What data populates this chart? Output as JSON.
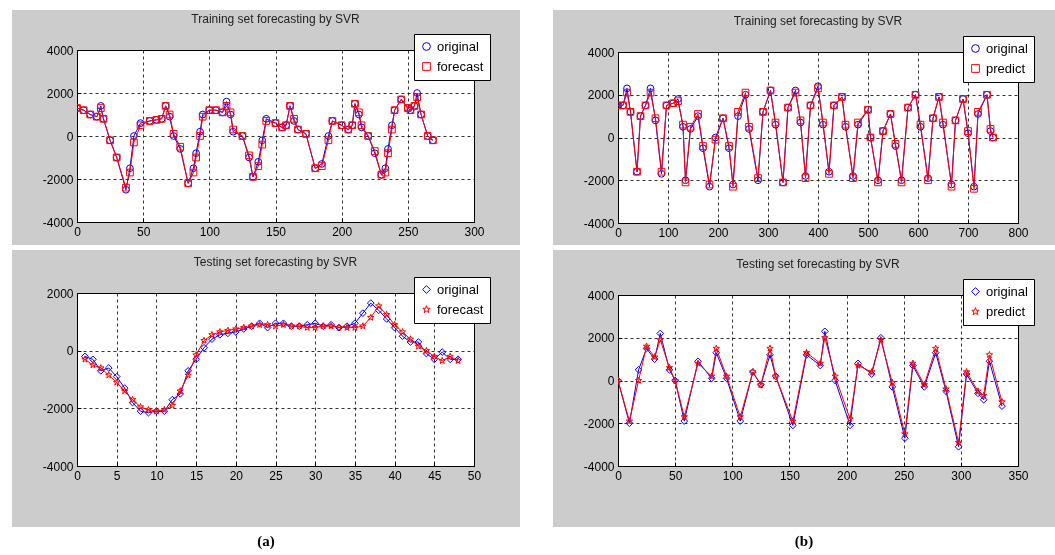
{
  "chart_data": [
    {
      "type": "line",
      "title": "Training set forecasting by SVR",
      "xlim": [
        0,
        300
      ],
      "xticks": [
        0,
        50,
        100,
        150,
        200,
        250,
        300
      ],
      "ylim": [
        -4000,
        4000
      ],
      "yticks": [
        -4000,
        -2000,
        0,
        2000,
        4000
      ],
      "grid": true,
      "legend": "top right",
      "line_style": "solid",
      "x": [
        0,
        5,
        10,
        15,
        18,
        20,
        25,
        30,
        37,
        40,
        43,
        48,
        55,
        60,
        64,
        67,
        70,
        73,
        78,
        84,
        88,
        90,
        93,
        95,
        100,
        105,
        110,
        113,
        116,
        118,
        125,
        130,
        133,
        137,
        140,
        143,
        150,
        155,
        158,
        161,
        164,
        167,
        173,
        180,
        185,
        190,
        193,
        200,
        205,
        208,
        210,
        213,
        215,
        220,
        225,
        230,
        233,
        235,
        238,
        240,
        245,
        250,
        252,
        255,
        257,
        260,
        265,
        269
      ],
      "series": [
        {
          "name": "original",
          "color": "#0000ff",
          "marker": "circle",
          "values": [
            1300,
            1200,
            1000,
            900,
            1400,
            800,
            -200,
            -1000,
            -2500,
            -1500,
            0,
            600,
            700,
            750,
            800,
            1400,
            900,
            0,
            -600,
            -2200,
            -1500,
            -800,
            200,
            1000,
            1200,
            1200,
            1100,
            1600,
            1000,
            200,
            0,
            -1000,
            -1900,
            -1200,
            -200,
            800,
            600,
            400,
            500,
            1400,
            700,
            300,
            100,
            -1500,
            -1300,
            0,
            700,
            500,
            300,
            500,
            1500,
            1000,
            400,
            0,
            -800,
            -1800,
            -1500,
            -600,
            500,
            1200,
            1700,
            1300,
            1200,
            1400,
            2000,
            1000,
            0,
            -200
          ]
        },
        {
          "name": "forecast",
          "color": "#ff0000",
          "marker": "square",
          "values": [
            1300,
            1200,
            1000,
            900,
            1300,
            800,
            -200,
            -1000,
            -2400,
            -1700,
            -300,
            500,
            700,
            750,
            800,
            1400,
            1000,
            100,
            -500,
            -2200,
            -1700,
            -1000,
            0,
            900,
            1200,
            1200,
            1100,
            1400,
            1100,
            300,
            0,
            -900,
            -1900,
            -1400,
            -400,
            700,
            600,
            400,
            500,
            1400,
            800,
            300,
            100,
            -1500,
            -1400,
            -200,
            700,
            500,
            300,
            500,
            1500,
            1100,
            500,
            0,
            -700,
            -1800,
            -1700,
            -800,
            300,
            1200,
            1700,
            1300,
            1200,
            1400,
            1800,
            1000,
            0,
            -200
          ]
        }
      ]
    },
    {
      "type": "line",
      "title": "Testing  set forecasting by SVR",
      "annotations": [
        "(a)"
      ],
      "xlim": [
        0,
        50
      ],
      "xticks": [
        0,
        5,
        10,
        15,
        20,
        25,
        30,
        35,
        40,
        45,
        50
      ],
      "ylim": [
        -4000,
        2000
      ],
      "yticks": [
        -4000,
        -2000,
        0,
        2000
      ],
      "grid": true,
      "legend": "top right",
      "line_style": "solid",
      "x": [
        1,
        2,
        3,
        4,
        5,
        6,
        7,
        8,
        9,
        10,
        11,
        12,
        13,
        14,
        15,
        16,
        17,
        18,
        19,
        20,
        21,
        22,
        23,
        24,
        25,
        26,
        27,
        28,
        29,
        30,
        31,
        32,
        33,
        34,
        35,
        36,
        37,
        38,
        39,
        40,
        41,
        42,
        43,
        44,
        45,
        46,
        47,
        48
      ],
      "series": [
        {
          "name": "original",
          "color": "#0000ff",
          "marker": "diamond",
          "values": [
            -200,
            -300,
            -700,
            -600,
            -900,
            -1300,
            -1800,
            -2100,
            -2150,
            -2100,
            -2100,
            -1700,
            -1500,
            -700,
            -300,
            100,
            400,
            550,
            600,
            650,
            750,
            850,
            950,
            800,
            950,
            950,
            850,
            850,
            900,
            950,
            850,
            900,
            800,
            850,
            950,
            1300,
            1650,
            1400,
            1100,
            800,
            500,
            300,
            300,
            -100,
            -300,
            -50,
            -300,
            -300
          ]
        },
        {
          "name": "forecast",
          "color": "#ff0000",
          "marker": "star",
          "values": [
            -300,
            -500,
            -600,
            -850,
            -1100,
            -1400,
            -1700,
            -1950,
            -2050,
            -2100,
            -2050,
            -1900,
            -1400,
            -850,
            -150,
            350,
            550,
            650,
            700,
            750,
            800,
            850,
            900,
            900,
            850,
            900,
            850,
            850,
            800,
            800,
            850,
            850,
            800,
            800,
            800,
            850,
            1150,
            1550,
            1250,
            900,
            650,
            400,
            150,
            0,
            -200,
            -350,
            -200,
            -350
          ]
        }
      ]
    },
    {
      "type": "line",
      "title": "Training set forecasting by SVR",
      "xlim": [
        0,
        800
      ],
      "xticks": [
        0,
        100,
        200,
        300,
        400,
        500,
        600,
        700,
        800
      ],
      "ylim": [
        -4000,
        4000
      ],
      "yticks": [
        -4000,
        -2000,
        0,
        2000,
        4000
      ],
      "grid": true,
      "legend": "top right",
      "line_style": "solid",
      "x": [
        0,
        10,
        18,
        25,
        38,
        45,
        55,
        65,
        75,
        87,
        97,
        110,
        120,
        130,
        135,
        145,
        160,
        170,
        183,
        195,
        210,
        222,
        230,
        240,
        255,
        262,
        280,
        290,
        305,
        315,
        330,
        340,
        355,
        365,
        375,
        385,
        400,
        410,
        422,
        432,
        448,
        455,
        470,
        480,
        500,
        505,
        520,
        530,
        545,
        555,
        567,
        580,
        595,
        605,
        620,
        630,
        642,
        650,
        667,
        675,
        690,
        700,
        712,
        720,
        738,
        745,
        750
      ],
      "series": [
        {
          "name": "original",
          "color": "#0000ff",
          "marker": "circle",
          "values": [
            1500,
            1500,
            2300,
            1200,
            -1600,
            1000,
            1500,
            2300,
            800,
            -1700,
            1500,
            1600,
            1800,
            500,
            -2000,
            400,
            1000,
            -500,
            -2300,
            0,
            900,
            -500,
            -2200,
            1000,
            2000,
            400,
            -2000,
            1200,
            2200,
            600,
            -2100,
            1400,
            2200,
            700,
            -1800,
            1500,
            2400,
            600,
            -1600,
            1500,
            1900,
            500,
            -1800,
            600,
            1300,
            0,
            -2000,
            300,
            1100,
            -400,
            -2000,
            1400,
            2000,
            500,
            -1900,
            900,
            1900,
            600,
            -2200,
            800,
            1800,
            200,
            -2300,
            1100,
            2000,
            300,
            0
          ]
        },
        {
          "name": "predict",
          "color": "#ff0000",
          "marker": "square",
          "values": [
            1500,
            1500,
            2100,
            1200,
            -1600,
            1000,
            1500,
            2100,
            900,
            -1600,
            1500,
            1600,
            1700,
            600,
            -2100,
            500,
            1100,
            -400,
            -2200,
            -100,
            900,
            -400,
            -2300,
            1200,
            2100,
            500,
            -1900,
            1200,
            2200,
            700,
            -2100,
            1400,
            2100,
            800,
            -1900,
            1500,
            2300,
            700,
            -1700,
            1500,
            1900,
            600,
            -1900,
            700,
            1300,
            0,
            -2100,
            300,
            1100,
            -300,
            -2100,
            1400,
            2000,
            600,
            -2000,
            900,
            1900,
            700,
            -2300,
            800,
            1800,
            300,
            -2400,
            1200,
            2000,
            400,
            0
          ]
        }
      ]
    },
    {
      "type": "line",
      "title": "Testing set forecasting by SVR",
      "annotations": [
        "(b)"
      ],
      "xlim": [
        0,
        350
      ],
      "xticks": [
        0,
        50,
        100,
        150,
        200,
        250,
        300,
        350
      ],
      "ylim": [
        -4000,
        4000
      ],
      "yticks": [
        -4000,
        -2000,
        0,
        2000,
        4000
      ],
      "grid": true,
      "legend": "top right",
      "line_style": "solid",
      "x": [
        0,
        10,
        18,
        25,
        32,
        37,
        45,
        50,
        58,
        70,
        82,
        86,
        95,
        107,
        118,
        125,
        133,
        138,
        153,
        165,
        177,
        181,
        190,
        203,
        210,
        222,
        230,
        240,
        251,
        258,
        268,
        278,
        287,
        298,
        305,
        315,
        320,
        325,
        336
      ],
      "series": [
        {
          "name": "original",
          "color": "#0000ff",
          "marker": "diamond",
          "values": [
            0,
            -2000,
            500,
            1500,
            1000,
            2200,
            500,
            0,
            -1900,
            900,
            100,
            1300,
            100,
            -1900,
            400,
            -200,
            1200,
            200,
            -2100,
            1200,
            700,
            2300,
            0,
            -2100,
            800,
            300,
            2000,
            -300,
            -2700,
            700,
            -300,
            1300,
            -500,
            -3100,
            300,
            -600,
            -900,
            900,
            -1200
          ]
        },
        {
          "name": "predict",
          "color": "#ff0000",
          "marker": "star",
          "values": [
            0,
            -1900,
            0,
            1600,
            1100,
            1900,
            600,
            0,
            -1700,
            800,
            200,
            1500,
            200,
            -1700,
            400,
            -200,
            1500,
            200,
            -1900,
            1300,
            800,
            2000,
            200,
            -1800,
            700,
            400,
            1900,
            -100,
            -2500,
            800,
            -200,
            1500,
            -400,
            -2900,
            400,
            -500,
            -700,
            1200,
            -1000
          ]
        }
      ]
    }
  ]
}
